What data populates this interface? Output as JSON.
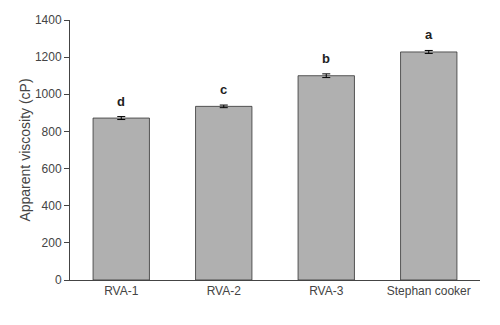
{
  "chart_data": {
    "type": "bar",
    "categories": [
      "RVA-1",
      "RVA-2",
      "RVA-3",
      "Stephan cooker"
    ],
    "values": [
      872,
      935,
      1100,
      1228
    ],
    "errors": [
      8,
      7,
      10,
      8
    ],
    "annotations": [
      "d",
      "c",
      "b",
      "a"
    ],
    "color": "#b0b0b0",
    "ylabel": "Apparent viscosity (cP)",
    "ylim": [
      0,
      1400
    ],
    "yticks": [
      0,
      200,
      400,
      600,
      800,
      1000,
      1200,
      1400
    ],
    "grid": false
  }
}
